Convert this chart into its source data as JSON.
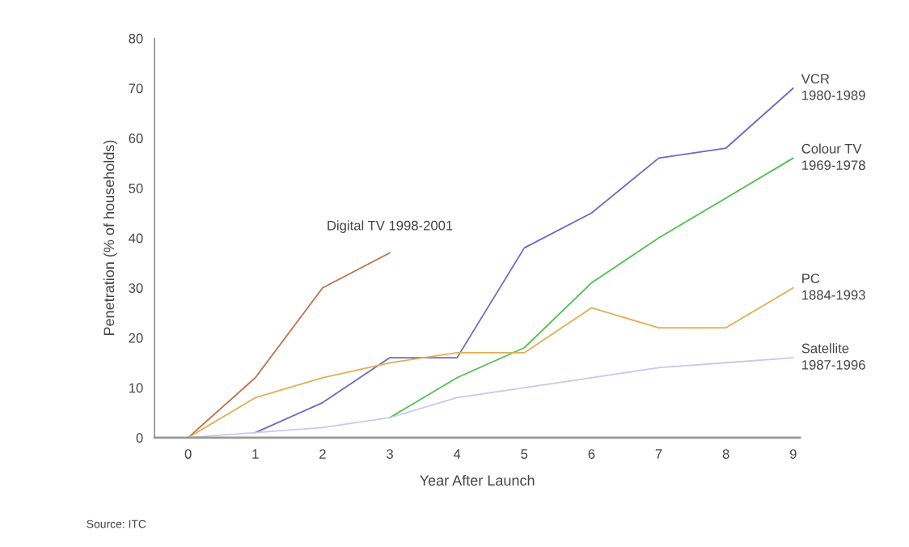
{
  "chart_data": {
    "type": "line",
    "xlabel": "Year After Launch",
    "ylabel": "Penetration (% of households)",
    "x": [
      0,
      1,
      2,
      3,
      4,
      5,
      6,
      7,
      8,
      9
    ],
    "series": [
      {
        "name": "Digital TV 1998-2001",
        "color": "#c0704a",
        "values": [
          0,
          12,
          30,
          37,
          null,
          null,
          null,
          null,
          null,
          null
        ]
      },
      {
        "name": "VCR\n1980-1989",
        "color": "#6a6ac8",
        "values": [
          null,
          1,
          7,
          16,
          16,
          38,
          45,
          56,
          58,
          70
        ]
      },
      {
        "name": "Colour TV\n1969-1978",
        "color": "#50c050",
        "values": [
          null,
          null,
          null,
          4,
          12,
          18,
          31,
          40,
          48,
          56
        ]
      },
      {
        "name": "PC\n1884-1993",
        "color": "#e0b050",
        "values": [
          0,
          8,
          12,
          15,
          17,
          17,
          26,
          22,
          22,
          30
        ]
      },
      {
        "name": "Satellite\n1987-1996",
        "color": "#c8c8f0",
        "values": [
          0,
          1,
          2,
          4,
          8,
          10,
          12,
          14,
          15,
          16
        ]
      }
    ],
    "xlim": [
      -0.5,
      9.1
    ],
    "xticks": [
      0,
      1,
      2,
      3,
      4,
      5,
      6,
      7,
      8,
      9
    ],
    "ylim": [
      0,
      80
    ],
    "yticks": [
      0,
      10,
      20,
      30,
      40,
      50,
      60,
      70,
      80
    ],
    "grid": false,
    "legend": false,
    "marker": "none",
    "line_style": "solid",
    "annotations": [
      "Source: ITC"
    ]
  }
}
